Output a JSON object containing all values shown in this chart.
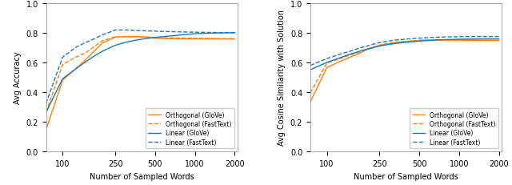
{
  "x": [
    75,
    100,
    125,
    150,
    175,
    200,
    250,
    300,
    350,
    400,
    500,
    600,
    700,
    800,
    1000,
    1500,
    2000
  ],
  "left_orth_glove": [
    0.148,
    0.48,
    0.555,
    0.62,
    0.68,
    0.73,
    0.77,
    0.773,
    0.773,
    0.772,
    0.762,
    0.76,
    0.759,
    0.758,
    0.758,
    0.757,
    0.757
  ],
  "left_orth_fasttext": [
    0.265,
    0.585,
    0.635,
    0.665,
    0.71,
    0.745,
    0.773,
    0.773,
    0.773,
    0.773,
    0.768,
    0.766,
    0.764,
    0.763,
    0.762,
    0.76,
    0.76
  ],
  "left_lin_glove": [
    0.265,
    0.49,
    0.555,
    0.605,
    0.645,
    0.675,
    0.715,
    0.735,
    0.748,
    0.757,
    0.768,
    0.775,
    0.78,
    0.785,
    0.793,
    0.798,
    0.8
  ],
  "left_lin_fasttext": [
    0.325,
    0.635,
    0.7,
    0.735,
    0.76,
    0.785,
    0.818,
    0.818,
    0.815,
    0.813,
    0.81,
    0.808,
    0.806,
    0.805,
    0.803,
    0.801,
    0.8
  ],
  "right_orth_glove": [
    0.335,
    0.565,
    0.605,
    0.635,
    0.66,
    0.685,
    0.715,
    0.727,
    0.736,
    0.741,
    0.748,
    0.75,
    0.75,
    0.75,
    0.75,
    0.748,
    0.748
  ],
  "right_orth_fasttext": [
    0.395,
    0.595,
    0.625,
    0.65,
    0.67,
    0.69,
    0.715,
    0.728,
    0.736,
    0.741,
    0.748,
    0.75,
    0.751,
    0.751,
    0.751,
    0.749,
    0.748
  ],
  "right_lin_glove": [
    0.55,
    0.6,
    0.63,
    0.655,
    0.673,
    0.688,
    0.71,
    0.722,
    0.73,
    0.735,
    0.743,
    0.748,
    0.751,
    0.753,
    0.756,
    0.758,
    0.758
  ],
  "right_lin_fasttext": [
    0.58,
    0.625,
    0.655,
    0.675,
    0.695,
    0.71,
    0.733,
    0.745,
    0.752,
    0.757,
    0.763,
    0.767,
    0.77,
    0.771,
    0.773,
    0.774,
    0.774
  ],
  "color_orange": "#FF7F0E",
  "color_blue": "#1F77B4",
  "left_ylabel": "Avg Accuracy",
  "right_ylabel": "Avg Cosine Similarity with Solution",
  "xlabel": "Number of Sampled Words",
  "legend_labels": [
    "Orthogonal (GloVe)",
    "Orthogonal (FastText)",
    "Linear (GloVe)",
    "Linear (FastText)"
  ],
  "xlim": [
    75,
    2100
  ],
  "ylim": [
    0.0,
    1.0
  ],
  "xticks": [
    100,
    250,
    500,
    1000,
    2000
  ],
  "yticks": [
    0.0,
    0.2,
    0.4,
    0.6,
    0.8,
    1.0
  ]
}
